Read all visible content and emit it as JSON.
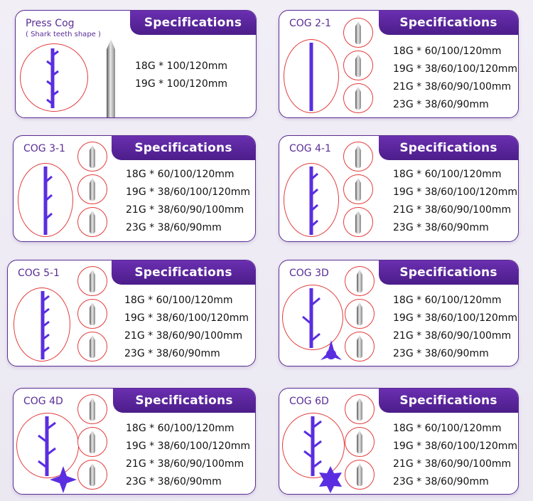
{
  "spec_header_label": "Specifications",
  "colors": {
    "purple": "#5b2c91",
    "header": "#5a22a0",
    "thread": "#5a2ee0",
    "circle": "#e33c3c"
  },
  "cards": [
    {
      "title": "Press Cog",
      "subtitle": "( Shark teeth shape )",
      "thread_icon": "shark-teeth-thread-icon",
      "specs": [
        "18G * 100/120mm",
        "19G * 100/120mm"
      ]
    },
    {
      "title": "COG 2-1",
      "thread_icon": "cog-thread-icon",
      "specs": [
        "18G * 60/100/120mm",
        "19G * 38/60/100/120mm",
        "21G * 38/60/90/100mm",
        "23G * 38/60/90mm"
      ]
    },
    {
      "title": "COG 3-1",
      "thread_icon": "cog-thread-icon",
      "specs": [
        "18G * 60/100/120mm",
        "19G * 38/60/100/120mm",
        "21G * 38/60/90/100mm",
        "23G * 38/60/90mm"
      ]
    },
    {
      "title": "COG 4-1",
      "thread_icon": "cog-thread-icon",
      "specs": [
        "18G * 60/100/120mm",
        "19G * 38/60/100/120mm",
        "21G * 38/60/90/100mm",
        "23G * 38/60/90mm"
      ]
    },
    {
      "title": "COG 5-1",
      "thread_icon": "cog-thread-icon",
      "specs": [
        "18G * 60/100/120mm",
        "19G * 38/60/100/120mm",
        "21G * 38/60/90/100mm",
        "23G * 38/60/90mm"
      ]
    },
    {
      "title": "COG 3D",
      "thread_icon": "cog-3d-thread-icon",
      "cross_section_icon": "triangle-cross-section-icon",
      "specs": [
        "18G * 60/100/120mm",
        "19G * 38/60/100/120mm",
        "21G * 38/60/90/100mm",
        "23G * 38/60/90mm"
      ]
    },
    {
      "title": "COG 4D",
      "thread_icon": "cog-4d-thread-icon",
      "cross_section_icon": "four-point-star-cross-section-icon",
      "specs": [
        "18G * 60/100/120mm",
        "19G * 38/60/100/120mm",
        "21G * 38/60/90/100mm",
        "23G * 38/60/90mm"
      ]
    },
    {
      "title": "COG 6D",
      "thread_icon": "cog-6d-thread-icon",
      "cross_section_icon": "six-point-star-cross-section-icon",
      "specs": [
        "18G * 60/100/120mm",
        "19G * 38/60/100/120mm",
        "21G * 38/60/90/100mm",
        "23G * 38/60/90mm"
      ]
    }
  ]
}
